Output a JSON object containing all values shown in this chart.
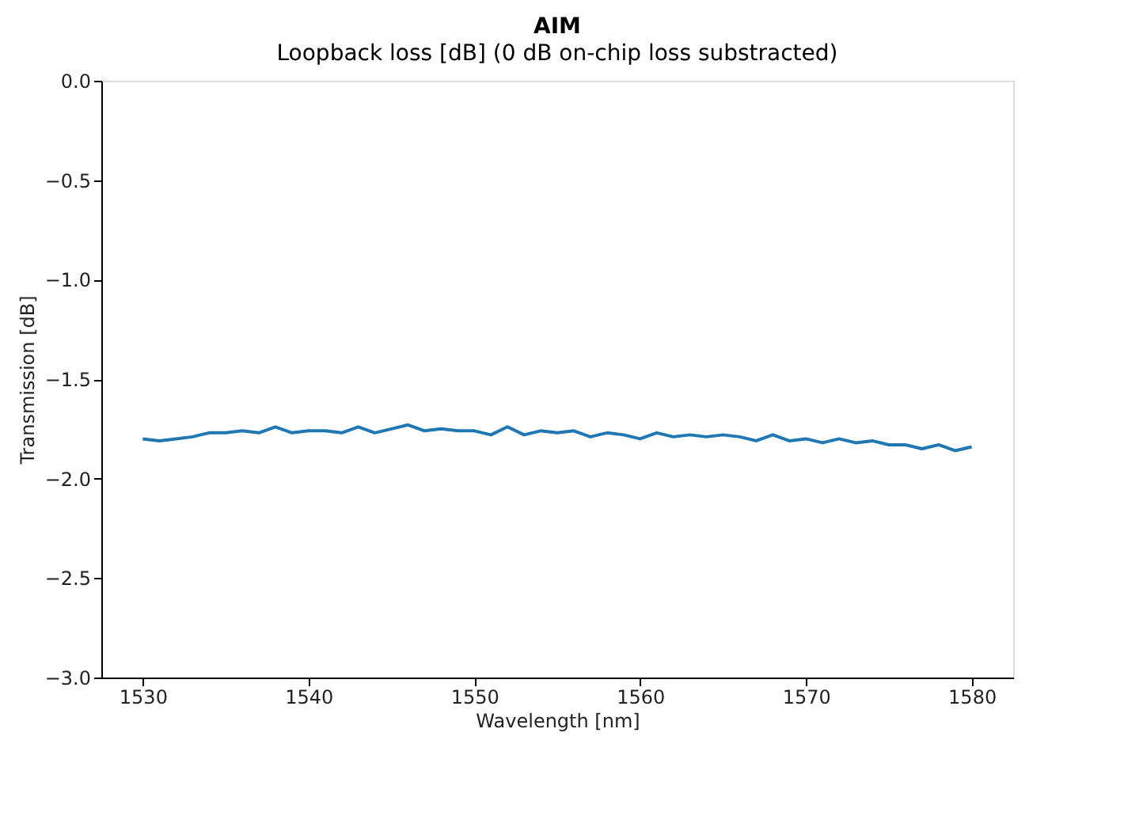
{
  "chart_data": {
    "type": "line",
    "title": "AIM",
    "subtitle": "Loopback loss [dB] (0 dB on-chip loss substracted)",
    "xlabel": "Wavelength [nm]",
    "ylabel": "Transmission [dB]",
    "x": [
      1530,
      1531,
      1532,
      1533,
      1534,
      1535,
      1536,
      1537,
      1538,
      1539,
      1540,
      1541,
      1542,
      1543,
      1544,
      1545,
      1546,
      1547,
      1548,
      1549,
      1550,
      1551,
      1552,
      1553,
      1554,
      1555,
      1556,
      1557,
      1558,
      1559,
      1560,
      1561,
      1562,
      1563,
      1564,
      1565,
      1566,
      1567,
      1568,
      1569,
      1570,
      1571,
      1572,
      1573,
      1574,
      1575,
      1576,
      1577,
      1578,
      1579,
      1580
    ],
    "series": [
      {
        "color": "#1f77b4",
        "values": [
          -1.8,
          -1.81,
          -1.8,
          -1.79,
          -1.77,
          -1.77,
          -1.76,
          -1.77,
          -1.74,
          -1.77,
          -1.76,
          -1.76,
          -1.77,
          -1.74,
          -1.77,
          -1.75,
          -1.73,
          -1.76,
          -1.75,
          -1.76,
          -1.76,
          -1.78,
          -1.74,
          -1.78,
          -1.76,
          -1.77,
          -1.76,
          -1.79,
          -1.77,
          -1.78,
          -1.8,
          -1.77,
          -1.79,
          -1.78,
          -1.79,
          -1.78,
          -1.79,
          -1.81,
          -1.78,
          -1.81,
          -1.8,
          -1.82,
          -1.8,
          -1.82,
          -1.81,
          -1.83,
          -1.83,
          -1.85,
          -1.83,
          -1.86,
          -1.84
        ]
      }
    ],
    "xlim": [
      1527.5,
      1582.5
    ],
    "xticks": [
      1530,
      1540,
      1550,
      1560,
      1570,
      1580
    ],
    "ylim": [
      -3.0,
      0.0
    ],
    "yticks": [
      {
        "value": -3.0,
        "label": "−3.0"
      },
      {
        "value": -2.5,
        "label": "−2.5"
      },
      {
        "value": -2.0,
        "label": "−2.0"
      },
      {
        "value": -1.5,
        "label": "−1.5"
      },
      {
        "value": -1.0,
        "label": "−1.0"
      },
      {
        "value": -0.5,
        "label": "−0.5"
      },
      {
        "value": 0.0,
        "label": "0.0"
      }
    ],
    "grid": false,
    "legend": false,
    "marker": "none",
    "line_style": "solid"
  }
}
